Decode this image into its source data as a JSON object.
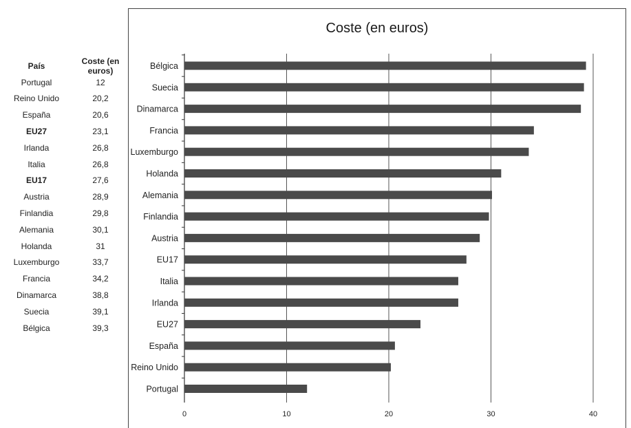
{
  "table": {
    "header": {
      "country": "País",
      "value": "Coste (en euros)"
    },
    "rows": [
      {
        "country": "Portugal",
        "value": "12",
        "bold": false
      },
      {
        "country": "Reino Unido",
        "value": "20,2",
        "bold": false
      },
      {
        "country": "España",
        "value": "20,6",
        "bold": false
      },
      {
        "country": "EU27",
        "value": "23,1",
        "bold": true
      },
      {
        "country": "Irlanda",
        "value": "26,8",
        "bold": false
      },
      {
        "country": "Italia",
        "value": "26,8",
        "bold": false
      },
      {
        "country": "EU17",
        "value": "27,6",
        "bold": true
      },
      {
        "country": "Austria",
        "value": "28,9",
        "bold": false
      },
      {
        "country": "Finlandia",
        "value": "29,8",
        "bold": false
      },
      {
        "country": "Alemania",
        "value": "30,1",
        "bold": false
      },
      {
        "country": "Holanda",
        "value": "31",
        "bold": false
      },
      {
        "country": "Luxemburgo",
        "value": "33,7",
        "bold": false
      },
      {
        "country": "Francia",
        "value": "34,2",
        "bold": false
      },
      {
        "country": "Dinamarca",
        "value": "38,8",
        "bold": false
      },
      {
        "country": "Suecia",
        "value": "39,1",
        "bold": false
      },
      {
        "country": "Bélgica",
        "value": "39,3",
        "bold": false
      }
    ]
  },
  "chart_data": {
    "type": "bar",
    "orientation": "horizontal",
    "title": "Coste (en euros)",
    "xlabel": "",
    "ylabel": "",
    "categories": [
      "Bélgica",
      "Suecia",
      "Dinamarca",
      "Francia",
      "Luxemburgo",
      "Holanda",
      "Alemania",
      "Finlandia",
      "Austria",
      "EU17",
      "Italia",
      "Irlanda",
      "EU27",
      "España",
      "Reino Unido",
      "Portugal"
    ],
    "values": [
      39.3,
      39.1,
      38.8,
      34.2,
      33.7,
      31,
      30.1,
      29.8,
      28.9,
      27.6,
      26.8,
      26.8,
      23.1,
      20.6,
      20.2,
      12
    ],
    "xlim": [
      0,
      40
    ],
    "xticks": [
      0,
      10,
      20,
      30,
      40
    ],
    "grid": "vertical",
    "legend": "none",
    "bar_color": "#4a4a4a",
    "grid_color": "#555555"
  }
}
